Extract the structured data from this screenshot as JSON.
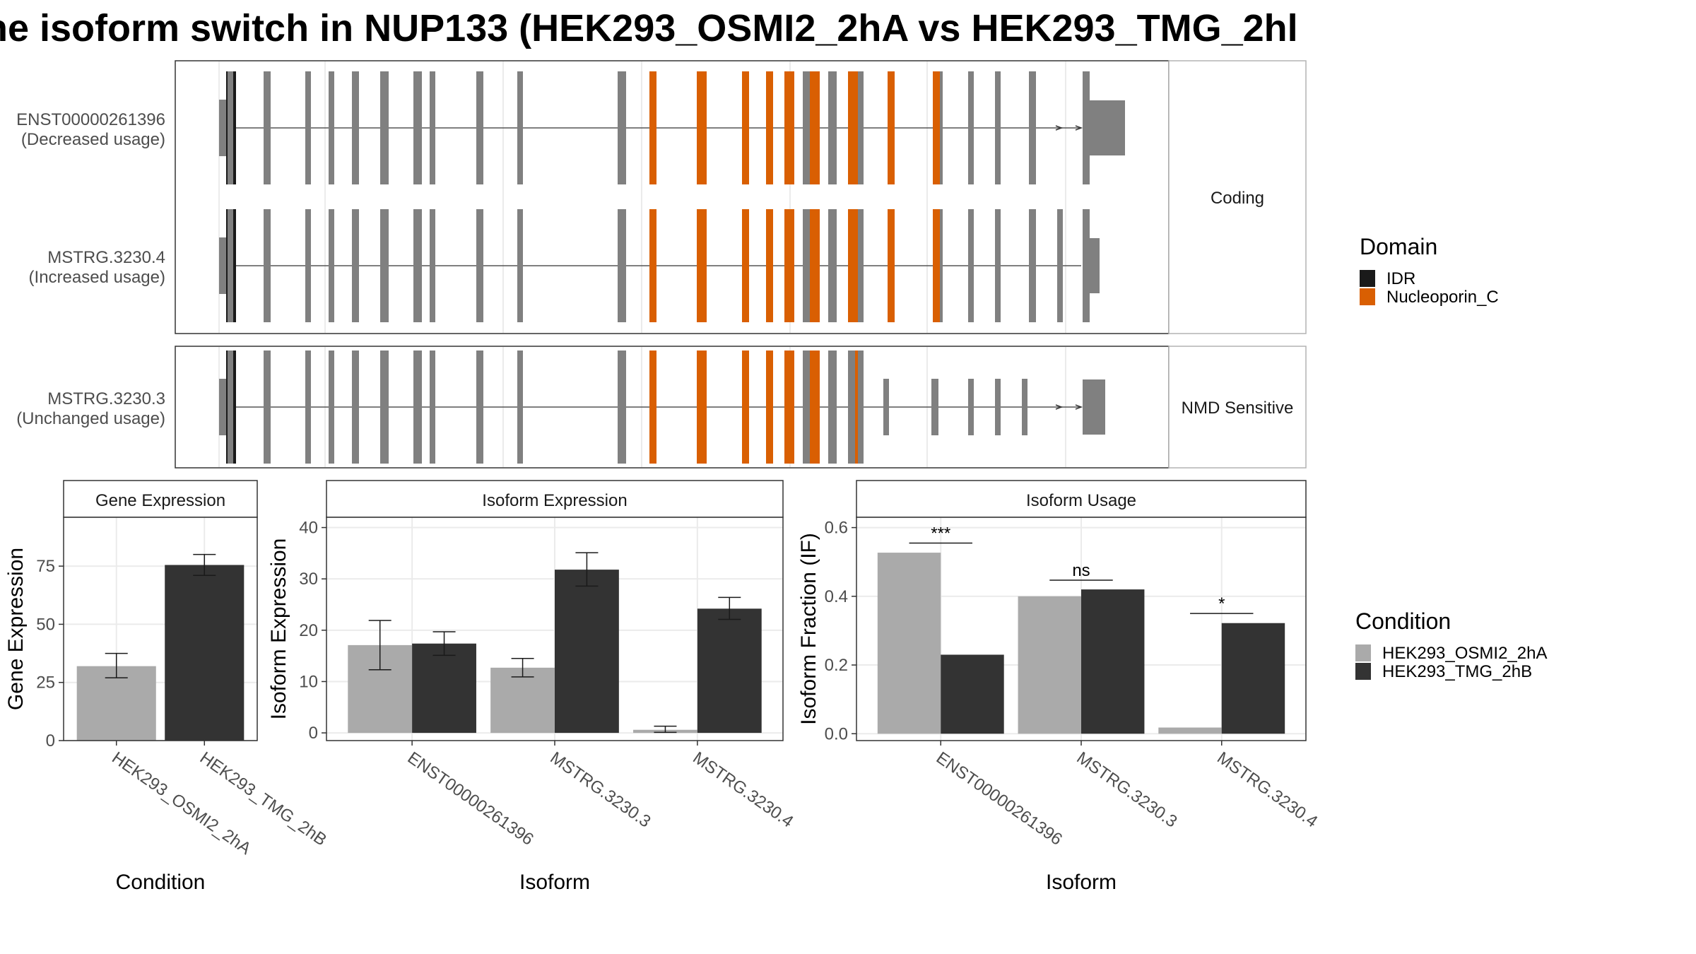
{
  "title": "he isoform switch in NUP133 (HEK293_OSMI2_2hA vs HEK293_TMG_2hl",
  "colors": {
    "exon": "#808080",
    "idr": "#1a1a1a",
    "nucleoporin": "#d95f02",
    "cond_a": "#aaaaaa",
    "cond_b": "#333333",
    "panel_border": "#333333",
    "grid": "#ebebeb",
    "strip_border": "#b3b3b3"
  },
  "structure": {
    "groups": [
      {
        "label": "Coding",
        "transcripts": [
          0,
          1
        ]
      },
      {
        "label": "NMD Sensitive",
        "transcripts": [
          2
        ]
      }
    ],
    "transcripts": [
      {
        "id": "ENST00000261396",
        "usage": "(Decreased usage)"
      },
      {
        "id": "MSTRG.3230.4",
        "usage": "(Increased usage)"
      },
      {
        "id": "MSTRG.3230.3",
        "usage": "(Unchanged usage)"
      }
    ],
    "legend": {
      "title": "Domain",
      "items": [
        {
          "label": "IDR",
          "color_key": "idr"
        },
        {
          "label": "Nucleoporin_C",
          "color_key": "nucleoporin"
        }
      ]
    }
  },
  "condition_legend": {
    "title": "Condition",
    "items": [
      {
        "label": "HEK293_OSMI2_2hA",
        "color_key": "cond_a"
      },
      {
        "label": "HEK293_TMG_2hB",
        "color_key": "cond_b"
      }
    ]
  },
  "chart_data": [
    {
      "type": "bar",
      "title": "Gene Expression",
      "xlabel": "Condition",
      "ylabel": "Gene Expression",
      "ylim": [
        0,
        96
      ],
      "yticks": [
        0,
        25,
        50,
        75
      ],
      "categories": [
        "HEK293_OSMI2_2hA",
        "HEK293_TMG_2hB"
      ],
      "series": [
        {
          "name": "HEK293_OSMI2_2hA",
          "values": [
            32,
            null
          ],
          "err_low": [
            27,
            null
          ],
          "err_high": [
            37.5,
            null
          ]
        },
        {
          "name": "HEK293_TMG_2hB",
          "values": [
            null,
            75.5
          ],
          "err_low": [
            null,
            71
          ],
          "err_high": [
            null,
            80
          ]
        }
      ]
    },
    {
      "type": "bar",
      "title": "Isoform Expression",
      "xlabel": "Isoform",
      "ylabel": "Isoform Expression",
      "ylim": [
        -1.5,
        42
      ],
      "yticks": [
        0,
        10,
        20,
        30,
        40
      ],
      "categories": [
        "ENST00000261396",
        "MSTRG.3230.3",
        "MSTRG.3230.4"
      ],
      "series": [
        {
          "name": "HEK293_OSMI2_2hA",
          "values": [
            17.1,
            12.7,
            0.6
          ],
          "err_low": [
            12.3,
            10.9,
            0.1
          ],
          "err_high": [
            21.9,
            14.5,
            1.3
          ]
        },
        {
          "name": "HEK293_TMG_2hB",
          "values": [
            17.4,
            31.8,
            24.2
          ],
          "err_low": [
            15.1,
            28.6,
            22.1
          ],
          "err_high": [
            19.7,
            35.1,
            26.4
          ]
        }
      ]
    },
    {
      "type": "bar",
      "title": "Isoform Usage",
      "xlabel": "Isoform",
      "ylabel": "Isoform Fraction (IF)",
      "ylim": [
        -0.02,
        0.63
      ],
      "yticks": [
        "0.0",
        "0.2",
        "0.4",
        "0.6"
      ],
      "categories": [
        "ENST00000261396",
        "MSTRG.3230.3",
        "MSTRG.3230.4"
      ],
      "series": [
        {
          "name": "HEK293_OSMI2_2hA",
          "values": [
            0.527,
            0.4,
            0.018
          ]
        },
        {
          "name": "HEK293_TMG_2hB",
          "values": [
            0.23,
            0.42,
            0.322
          ]
        }
      ],
      "significance": [
        {
          "category": "ENST00000261396",
          "label": "***",
          "y": 0.555
        },
        {
          "category": "MSTRG.3230.3",
          "label": "ns",
          "y": 0.447
        },
        {
          "category": "MSTRG.3230.4",
          "label": "*",
          "y": 0.35
        }
      ]
    }
  ]
}
